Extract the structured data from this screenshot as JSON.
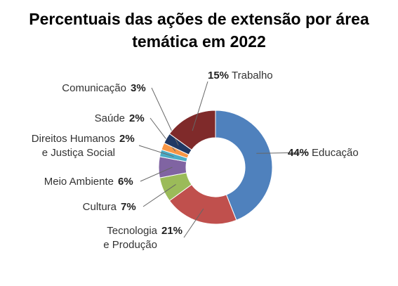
{
  "title": {
    "line1": "Percentuais das ações de extensão por área",
    "line2": "temática em 2022"
  },
  "chart_data": {
    "type": "pie",
    "title": "Percentuais das ações de extensão por área temática em 2022",
    "donut": true,
    "slices": [
      {
        "label": "Educação",
        "label_lines": [
          "Educação"
        ],
        "value": 44,
        "pct_text": "44%",
        "color": "#4f81bd"
      },
      {
        "label": "Tecnologia e Produção",
        "label_lines": [
          "Tecnologia",
          "e Produção"
        ],
        "value": 21,
        "pct_text": "21%",
        "color": "#c0504d"
      },
      {
        "label": "Cultura",
        "label_lines": [
          "Cultura"
        ],
        "value": 7,
        "pct_text": "7%",
        "color": "#9bbb59"
      },
      {
        "label": "Meio Ambiente",
        "label_lines": [
          "Meio Ambiente"
        ],
        "value": 6,
        "pct_text": "6%",
        "color": "#8064a2"
      },
      {
        "label": "Direitos Humanos e Justiça Social",
        "label_lines": [
          "Direitos Humanos",
          "e Justiça Social"
        ],
        "value": 2,
        "pct_text": "2%",
        "color": "#4bacc6"
      },
      {
        "label": "Saúde",
        "label_lines": [
          "Saúde"
        ],
        "value": 2,
        "pct_text": "2%",
        "color": "#f79646"
      },
      {
        "label": "Comunicação",
        "label_lines": [
          "Comunicação"
        ],
        "value": 3,
        "pct_text": "3%",
        "color": "#1f3864"
      },
      {
        "label": "Trabalho",
        "label_lines": [
          "Trabalho"
        ],
        "value": 15,
        "pct_text": "15%",
        "color": "#7f2a2a"
      }
    ]
  }
}
